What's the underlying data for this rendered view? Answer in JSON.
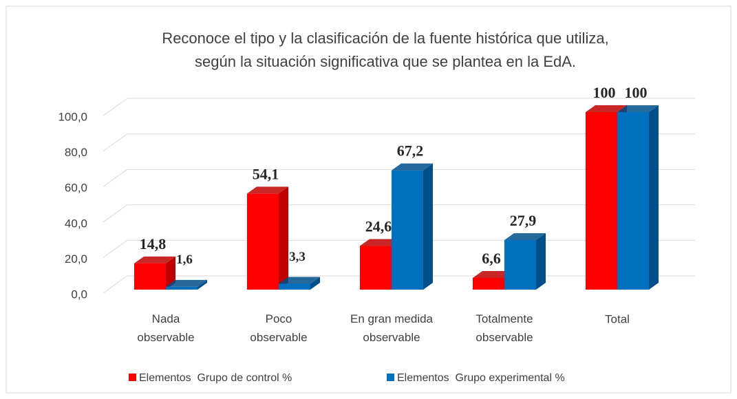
{
  "chart_data": {
    "type": "bar3d",
    "title": [
      "Reconoce el tipo y la clasificación de la fuente histórica que utiliza,",
      "según la situación significativa que se plantea en la EdA."
    ],
    "categories": [
      "Nada observable",
      "Poco observable",
      "En gran medida observable",
      "Totalmente observable",
      "Total"
    ],
    "series": [
      {
        "name": "Elementos  Grupo de control %",
        "color": "#ff0000",
        "side": "#c00000",
        "values": [
          14.8,
          54.1,
          24.6,
          6.6,
          100
        ],
        "value_labels": [
          "14,8",
          "54,1",
          "24,6",
          "6,6",
          "100"
        ]
      },
      {
        "name": "Elementos  Grupo experimental %",
        "color": "#0070c0",
        "side": "#004f8a",
        "values": [
          1.6,
          3.3,
          67.2,
          27.9,
          100
        ],
        "value_labels": [
          "1,6",
          "3,3",
          "67,2",
          "27,9",
          "100"
        ]
      }
    ],
    "ylim": [
      0,
      100
    ],
    "yticks": [
      {
        "value": 0,
        "label": "0,0"
      },
      {
        "value": 20,
        "label": "20,0"
      },
      {
        "value": 40,
        "label": "40,0"
      },
      {
        "value": 60,
        "label": "60,0"
      },
      {
        "value": 80,
        "label": "80,0"
      },
      {
        "value": 100,
        "label": "100,0"
      }
    ],
    "grid": true,
    "legend": "bottom"
  }
}
